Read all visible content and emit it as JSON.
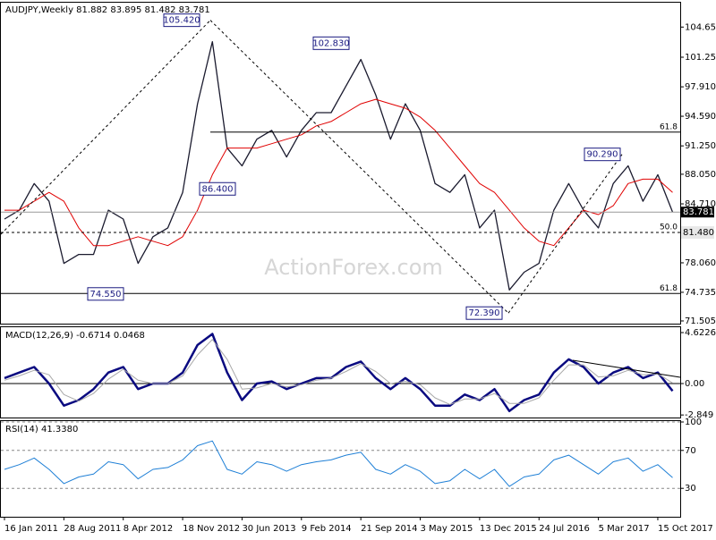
{
  "chart_data": [
    {
      "type": "line",
      "title": "AUDJPY,Weekly  81.882 83.895 81.482 83.781",
      "watermark": "ActionForex.com",
      "categories": [
        "16 Jan 2011",
        null,
        null,
        null,
        "28 Aug 2011",
        null,
        null,
        null,
        "8 Apr 2012",
        null,
        null,
        null,
        "18 Nov 2012",
        null,
        null,
        null,
        "30 Jun 2013",
        null,
        null,
        null,
        "9 Feb 2014",
        null,
        null,
        null,
        "21 Sep 2014",
        null,
        null,
        null,
        "3 May 2015",
        null,
        null,
        null,
        "13 Dec 2015",
        null,
        null,
        null,
        "24 Jul 2016",
        null,
        null,
        null,
        "5 Mar 2017",
        null,
        null,
        null,
        "15 Oct 2017",
        null
      ],
      "series": [
        {
          "name": "AUDJPY",
          "color": "#1a1a2e",
          "values": [
            83,
            84,
            87,
            85,
            78,
            79,
            79,
            84,
            83,
            78,
            81,
            82,
            86,
            96,
            103,
            91,
            89,
            92,
            93,
            90,
            93,
            95,
            95,
            98,
            101,
            97,
            92,
            96,
            93,
            87,
            86,
            88,
            82,
            84,
            75,
            77,
            78,
            84,
            87,
            84,
            82,
            87,
            89,
            85,
            88,
            83.781
          ]
        },
        {
          "name": "SMA",
          "color": "#e00000",
          "values": [
            84,
            84,
            85,
            86,
            85,
            82,
            80,
            80,
            80.5,
            81,
            80.5,
            80,
            81,
            84,
            88,
            91,
            91,
            91,
            91.5,
            92,
            92.5,
            93.5,
            94,
            95,
            96,
            96.5,
            96,
            95.5,
            94.5,
            93,
            91,
            89,
            87,
            86,
            84,
            82,
            80.5,
            80,
            82,
            84,
            83.5,
            84.5,
            87,
            87.5,
            87.5,
            86
          ]
        }
      ],
      "ylim": [
        71.2,
        107.4
      ],
      "yticks": [
        {
          "value": 104.65,
          "label": "104.650"
        },
        {
          "value": 101.25,
          "label": "101.250"
        },
        {
          "value": 97.91,
          "label": "97.910"
        },
        {
          "value": 94.59,
          "label": "94.590"
        },
        {
          "value": 91.25,
          "label": "91.250"
        },
        {
          "value": 88.05,
          "label": "88.050"
        },
        {
          "value": 84.71,
          "label": "84.710"
        },
        {
          "value": 78.06,
          "label": "78.060"
        },
        74.735,
        71.505
      ],
      "last_price": {
        "value": 83.781,
        "label": "83.781"
      },
      "annotations": [
        {
          "value": 105.42,
          "label": "105.420"
        },
        {
          "value": 102.83,
          "label": "102.830"
        },
        {
          "value": 86.4,
          "label": "86.400"
        },
        {
          "value": 74.55,
          "label": "74.550"
        },
        {
          "value": 72.39,
          "label": "72.390"
        },
        {
          "value": 90.29,
          "label": "90.290"
        },
        {
          "value": 81.48,
          "label": "81.480"
        }
      ],
      "fib_levels": [
        {
          "name": "61.8",
          "value": 92.8
        },
        {
          "name": "50.0",
          "value": 81.48
        },
        {
          "name": "61.8",
          "value": 74.6
        }
      ],
      "grid": false
    },
    {
      "type": "line",
      "title": "MACD(12,26,9) -0.6714 0.0468",
      "series": [
        {
          "name": "MACD",
          "color": "#0a0a80",
          "values": [
            0.5,
            1,
            1.5,
            0,
            -2,
            -1.5,
            -0.5,
            1,
            1.5,
            -0.5,
            0,
            0,
            1,
            3.5,
            4.5,
            1,
            -1.5,
            0,
            0.2,
            -0.5,
            0,
            0.5,
            0.5,
            1.5,
            2,
            0.5,
            -0.5,
            0.5,
            -0.5,
            -2,
            -2,
            -1,
            -1.5,
            -0.5,
            -2.5,
            -1.5,
            -1,
            1,
            2.2,
            1.5,
            0,
            1,
            1.5,
            0.5,
            1,
            -0.6714
          ]
        },
        {
          "name": "Signal",
          "color": "#a8a8a8",
          "values": [
            0.3,
            0.7,
            1.2,
            0.8,
            -1,
            -1.6,
            -0.9,
            0.4,
            1.3,
            0.3,
            0,
            0,
            0.7,
            2.6,
            4,
            2.2,
            -0.5,
            -0.4,
            0,
            -0.3,
            -0.1,
            0.3,
            0.5,
            1.1,
            1.8,
            1.1,
            0,
            0.2,
            -0.1,
            -1.3,
            -1.9,
            -1.4,
            -1.4,
            -0.9,
            -1.8,
            -1.8,
            -1.3,
            0.3,
            1.7,
            1.7,
            0.6,
            0.7,
            1.2,
            0.8,
            0.9,
            0.0468
          ]
        }
      ],
      "ylim": [
        -3.08,
        5.11
      ],
      "yticks": [
        4.6226,
        {
          "value": 0,
          "label": "0.00"
        },
        -2.849
      ],
      "zero_line": true,
      "grid": false
    },
    {
      "type": "line",
      "title": "RSI(14) 41.3380",
      "series": [
        {
          "name": "RSI",
          "color": "#1e7fd6",
          "values": [
            50,
            55,
            62,
            50,
            35,
            42,
            45,
            58,
            55,
            40,
            50,
            52,
            60,
            75,
            80,
            50,
            45,
            58,
            55,
            48,
            55,
            58,
            60,
            65,
            68,
            50,
            45,
            55,
            48,
            35,
            38,
            50,
            40,
            50,
            32,
            42,
            45,
            60,
            65,
            55,
            45,
            58,
            62,
            48,
            55,
            41.338
          ]
        }
      ],
      "ylim": [
        0,
        100
      ],
      "yticks": [
        100,
        70,
        30
      ],
      "grid": true
    }
  ]
}
